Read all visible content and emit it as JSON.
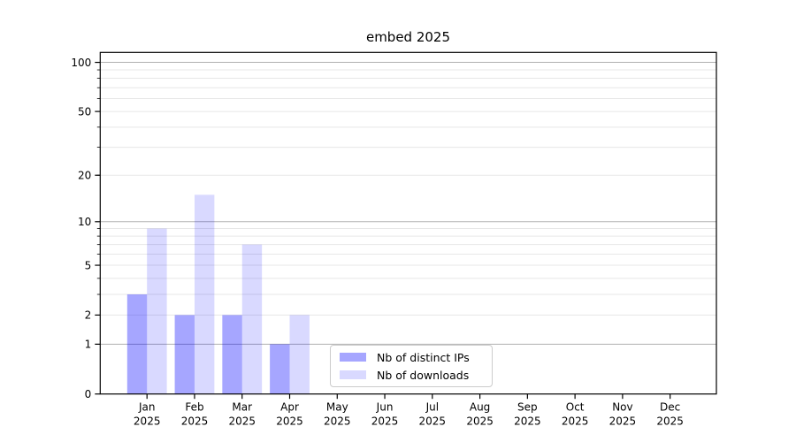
{
  "figure": {
    "background": "#ffffff"
  },
  "chart_data": {
    "type": "bar",
    "title": "embed 2025",
    "xlabel": "",
    "ylabel": "",
    "categories": [
      "Jan\n2025",
      "Feb\n2025",
      "Mar\n2025",
      "Apr\n2025",
      "May\n2025",
      "Jun\n2025",
      "Jul\n2025",
      "Aug\n2025",
      "Sep\n2025",
      "Oct\n2025",
      "Nov\n2025",
      "Dec\n2025"
    ],
    "series": [
      {
        "name": "Nb of distinct IPs",
        "color": "rgba(0,0,255,0.35)",
        "values": [
          3,
          2,
          2,
          1,
          0,
          0,
          0,
          0,
          0,
          0,
          0,
          0
        ]
      },
      {
        "name": "Nb of downloads",
        "color": "rgba(0,0,255,0.15)",
        "values": [
          9,
          15,
          7,
          2,
          0,
          0,
          0,
          0,
          0,
          0,
          0,
          0
        ]
      }
    ],
    "y_scale": "log1p",
    "ylim": [
      0,
      115
    ],
    "y_ticks": [
      0,
      1,
      2,
      5,
      10,
      20,
      50,
      100
    ],
    "y_major_gridlines": [
      1,
      10,
      100
    ],
    "y_minor_gridlines": [
      2,
      3,
      4,
      5,
      6,
      7,
      8,
      9,
      20,
      30,
      40,
      50,
      60,
      70,
      80,
      90
    ],
    "grid": true,
    "legend_position": "lower-center",
    "colors": {
      "axis": "#000000",
      "major_grid": "#b0b0b0",
      "minor_grid": "#e7e7e7",
      "legend_border": "#cccccc",
      "legend_background": "#ffffff",
      "text": "#000000"
    }
  }
}
